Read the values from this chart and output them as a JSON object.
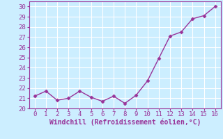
{
  "x": [
    0,
    1,
    2,
    3,
    4,
    5,
    6,
    7,
    8,
    9,
    10,
    11,
    12,
    13,
    14,
    15,
    16
  ],
  "y": [
    21.2,
    21.7,
    20.8,
    21.0,
    21.7,
    21.1,
    20.7,
    21.2,
    20.5,
    21.3,
    22.7,
    24.9,
    27.1,
    27.5,
    28.8,
    29.1,
    30.0
  ],
  "line_color": "#993399",
  "marker": "D",
  "marker_size": 2.5,
  "xlabel": "Windchill (Refroidissement éolien,°C)",
  "xlim": [
    -0.5,
    16.5
  ],
  "ylim": [
    20,
    30.5
  ],
  "yticks": [
    20,
    21,
    22,
    23,
    24,
    25,
    26,
    27,
    28,
    29,
    30
  ],
  "xticks": [
    0,
    1,
    2,
    3,
    4,
    5,
    6,
    7,
    8,
    9,
    10,
    11,
    12,
    13,
    14,
    15,
    16
  ],
  "bg_color": "#cceeff",
  "grid_color": "#ffffff",
  "xlabel_color": "#993399",
  "tick_color": "#993399",
  "spine_color": "#993399",
  "tick_labelsize": 6.5,
  "xlabel_fontsize": 7.0,
  "linewidth": 1.0
}
